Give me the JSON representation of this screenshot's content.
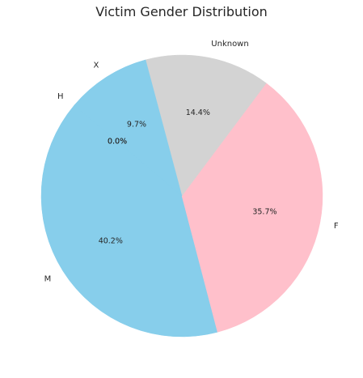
{
  "chart_data": {
    "type": "pie",
    "title": "Victim Gender Distribution",
    "start_angle_deg": 140,
    "direction": "counterclockwise",
    "slices": [
      {
        "label": "M",
        "value": 40.2,
        "pct_label": "40.2%",
        "color": "#87ceeb"
      },
      {
        "label": "F",
        "value": 35.7,
        "pct_label": "35.7%",
        "color": "#ffc0cb"
      },
      {
        "label": "Unknown",
        "value": 14.4,
        "pct_label": "14.4%",
        "color": "#d3d3d3"
      },
      {
        "label": "X",
        "value": 9.7,
        "pct_label": "9.7%",
        "color": "#87ceeb"
      },
      {
        "label": "H",
        "value": 0.02,
        "pct_label": "0.0%",
        "color": "#87ceeb"
      },
      {
        "label": "",
        "value": 0.01,
        "pct_label": "0.0%",
        "color": "#87ceeb"
      }
    ]
  }
}
